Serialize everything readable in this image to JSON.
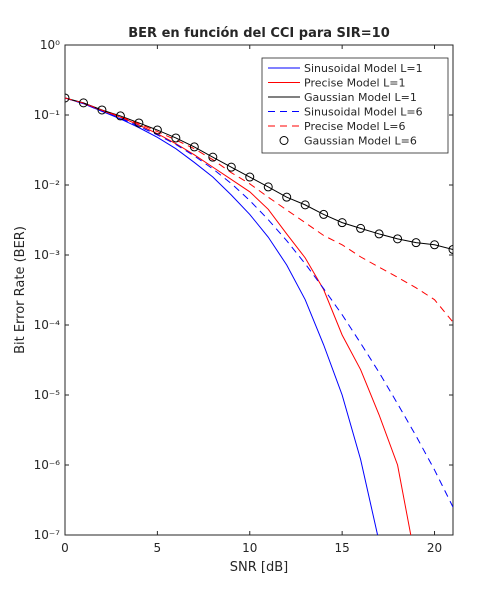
{
  "chart_data": {
    "type": "line",
    "title": "BER en función del CCI para SIR=10",
    "x_label": "SNR [dB]",
    "y_label": "Bit Error Rate (BER)",
    "x": [
      0,
      1,
      2,
      3,
      4,
      5,
      6,
      7,
      8,
      9,
      10,
      11,
      12,
      13,
      14,
      15,
      16,
      17,
      18,
      19,
      20,
      21
    ],
    "xlim": [
      0,
      21
    ],
    "xticks": [
      0,
      5,
      10,
      15,
      20
    ],
    "ylim": [
      1e-07,
      1
    ],
    "yticks": [
      {
        "value": 1e-07,
        "label": "10⁻⁷"
      },
      {
        "value": 1e-06,
        "label": "10⁻⁶"
      },
      {
        "value": 1e-05,
        "label": "10⁻⁵"
      },
      {
        "value": 0.0001,
        "label": "10⁻⁴"
      },
      {
        "value": 0.001,
        "label": "10⁻³"
      },
      {
        "value": 0.01,
        "label": "10⁻²"
      },
      {
        "value": 0.1,
        "label": "10⁻¹"
      },
      {
        "value": 1,
        "label": "10⁰"
      }
    ],
    "log_y": true,
    "grid": false,
    "legend": "upper right",
    "series": [
      {
        "name": "Sinusoidal Model L=1",
        "color": "#0000ff",
        "dash": false,
        "marker": false,
        "values": [
          0.175,
          0.145,
          0.113,
          0.088,
          0.066,
          0.048,
          0.033,
          0.021,
          0.013,
          0.0072,
          0.0038,
          0.0018,
          0.00072,
          0.00023,
          5.2e-05,
          1e-05,
          1.2e-06,
          8e-08,
          null,
          null,
          null,
          null
        ]
      },
      {
        "name": "Precise Model L=1",
        "color": "#ff0000",
        "dash": false,
        "marker": false,
        "values": [
          0.175,
          0.147,
          0.116,
          0.093,
          0.072,
          0.054,
          0.039,
          0.027,
          0.018,
          0.012,
          0.008,
          0.0045,
          0.002,
          0.00091,
          0.00032,
          7.2e-05,
          2.3e-05,
          5.2e-06,
          1e-06,
          4e-08,
          null,
          null
        ]
      },
      {
        "name": "Gaussian Model L=1",
        "color": "#000000",
        "dash": false,
        "marker": false,
        "values": [
          0.175,
          0.149,
          0.118,
          0.097,
          0.077,
          0.061,
          0.047,
          0.035,
          0.025,
          0.018,
          0.013,
          0.0094,
          0.0067,
          0.0052,
          0.0038,
          0.0029,
          0.0024,
          0.002,
          0.0017,
          0.0015,
          0.0014,
          0.0012
        ]
      },
      {
        "name": "Sinusoidal Model L=6",
        "color": "#0000ff",
        "dash": true,
        "marker": false,
        "values": [
          0.175,
          0.145,
          0.113,
          0.09,
          0.069,
          0.052,
          0.038,
          0.026,
          0.017,
          0.0105,
          0.006,
          0.0032,
          0.0016,
          0.00075,
          0.00033,
          0.00014,
          5.5e-05,
          2.1e-05,
          7.5e-06,
          2.6e-06,
          8.5e-07,
          2.5e-07
        ]
      },
      {
        "name": "Precise Model L=6",
        "color": "#ff0000",
        "dash": true,
        "marker": false,
        "values": [
          0.175,
          0.148,
          0.117,
          0.095,
          0.075,
          0.058,
          0.044,
          0.033,
          0.023,
          0.015,
          0.0104,
          0.0067,
          0.0044,
          0.0029,
          0.0019,
          0.0014,
          0.00094,
          0.00067,
          0.00048,
          0.00034,
          0.00023,
          0.00011
        ]
      },
      {
        "name": "Gaussian Model L=6",
        "color": "#000000",
        "dash": false,
        "marker": true,
        "values": [
          0.175,
          0.149,
          0.118,
          0.097,
          0.077,
          0.061,
          0.047,
          0.035,
          0.025,
          0.018,
          0.013,
          0.0094,
          0.0067,
          0.0052,
          0.0038,
          0.0029,
          0.0024,
          0.002,
          0.0017,
          0.0015,
          0.0014,
          0.0012
        ]
      }
    ]
  }
}
